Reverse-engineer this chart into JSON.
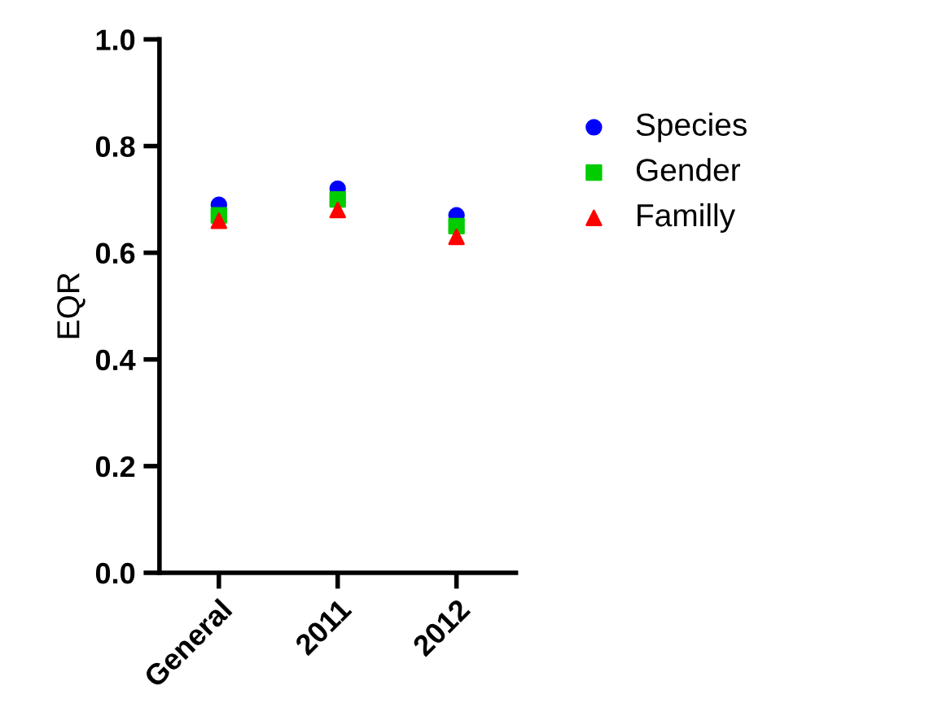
{
  "chart_data": {
    "type": "scatter",
    "ylabel": "EQR",
    "categories": [
      "General",
      "2011",
      "2012"
    ],
    "series": [
      {
        "name": "Species",
        "color": "#0000ff",
        "marker": "circle",
        "values": [
          0.69,
          0.72,
          0.67
        ]
      },
      {
        "name": "Gender",
        "color": "#00cc00",
        "marker": "square",
        "values": [
          0.67,
          0.7,
          0.65
        ]
      },
      {
        "name": "Familly",
        "color": "#ff0000",
        "marker": "triangle",
        "values": [
          0.66,
          0.68,
          0.63
        ]
      }
    ],
    "ylim": [
      0,
      1.0
    ],
    "yticks": [
      {
        "value": 0,
        "label": "0.0"
      },
      0.2,
      0.4,
      0.6,
      0.8,
      {
        "value": 1.0,
        "label": "1.0"
      }
    ],
    "grid": false,
    "legend": "right"
  }
}
